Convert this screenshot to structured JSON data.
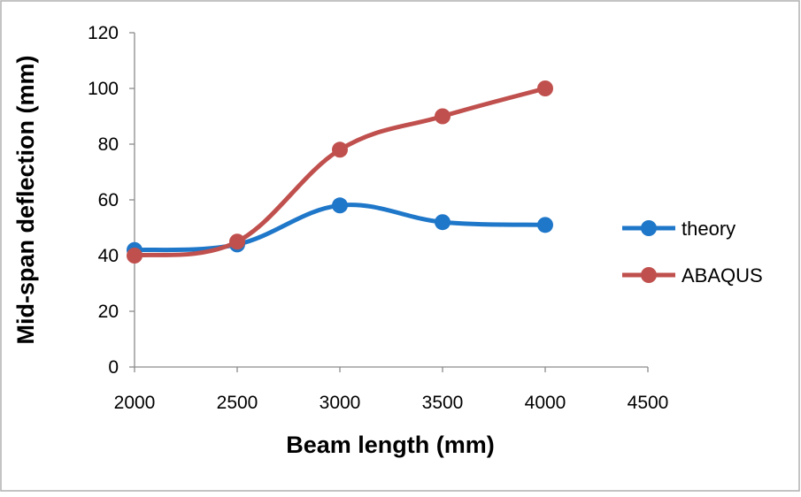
{
  "chart_data": {
    "type": "line",
    "title": "",
    "xlabel": "Beam length (mm)",
    "ylabel": "Mid-span deflection (mm)",
    "xlim": [
      2000,
      4500
    ],
    "ylim": [
      0,
      120
    ],
    "x_ticks": [
      2000,
      2500,
      3000,
      3500,
      4000,
      4500
    ],
    "y_ticks": [
      0,
      20,
      40,
      60,
      80,
      100,
      120
    ],
    "grid": false,
    "legend_position": "right",
    "smooth": true,
    "series": [
      {
        "name": "theory",
        "color": "#1f77c9",
        "x": [
          2000,
          2500,
          3000,
          3500,
          4000
        ],
        "y": [
          42,
          44,
          58,
          52,
          51
        ]
      },
      {
        "name": "ABAQUS",
        "color": "#c0504d",
        "x": [
          2000,
          2500,
          3000,
          3500,
          4000
        ],
        "y": [
          40,
          45,
          78,
          90,
          100
        ]
      }
    ]
  }
}
